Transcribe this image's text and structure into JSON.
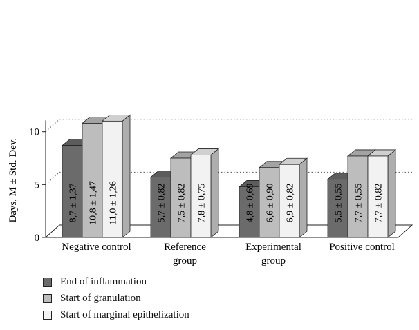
{
  "chart_data": {
    "type": "bar",
    "style": "3d-grouped",
    "ylabel": "Days, M ± Std. Dev.",
    "ylim": [
      0,
      10.8
    ],
    "yticks": [
      0,
      5,
      10
    ],
    "grid": "dotted at 5 and 10",
    "categories": [
      [
        "Negative control"
      ],
      [
        "Reference",
        "group"
      ],
      [
        "Experimental",
        "group"
      ],
      [
        "Positive control"
      ]
    ],
    "series": [
      {
        "name": "End of inflammation",
        "color": "#6b6b6b",
        "values": [
          8.7,
          5.7,
          4.8,
          5.5
        ],
        "labels": [
          "8,7 ± 1,37",
          "5,7 ± 0,82",
          "4,8 ± 0,69",
          "5,5 ± 0,55"
        ]
      },
      {
        "name": "Start of granulation",
        "color": "#bdbdbd",
        "values": [
          10.8,
          7.5,
          6.6,
          7.7
        ],
        "labels": [
          "10,8 ± 1,47",
          "7,5 ± 0,82",
          "6,6 ± 0,90",
          "7,7 ± 0,55"
        ]
      },
      {
        "name": "Start of marginal epithelization",
        "color": "#f2f2f2",
        "values": [
          11.0,
          7.8,
          6.9,
          7.7
        ],
        "labels": [
          "11,0 ± 1,26",
          "7,8 ± 0,75",
          "6,9 ± 0,82",
          "7,7 ± 0,82"
        ]
      }
    ],
    "legend": "bottom-left"
  }
}
